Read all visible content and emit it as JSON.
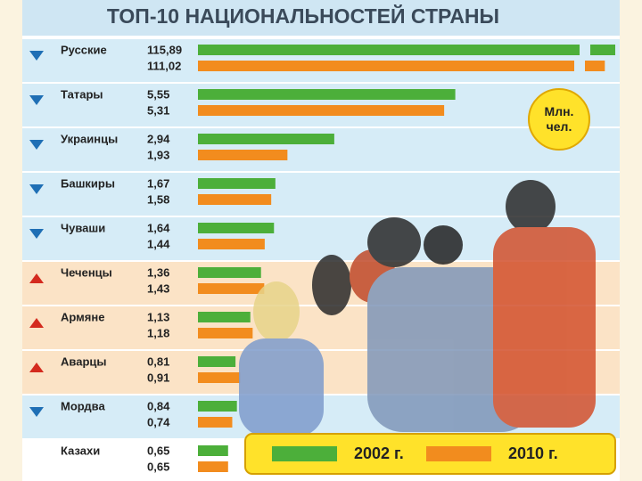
{
  "chart_data": {
    "type": "bar",
    "orientation": "horizontal",
    "title": "ТОП-10 НАЦИОНАЛЬНОСТЕЙ СТРАНЫ",
    "unit": "Млн. чел.",
    "categories": [
      "Русские",
      "Татары",
      "Украинцы",
      "Башкиры",
      "Чуваши",
      "Чеченцы",
      "Армяне",
      "Аварцы",
      "Мордва",
      "Казахи"
    ],
    "series": [
      {
        "name": "2002 г.",
        "color": "#4caf3a",
        "values": [
          115.89,
          5.55,
          2.94,
          1.67,
          1.64,
          1.36,
          1.13,
          0.81,
          0.84,
          0.65
        ],
        "value_labels": [
          "115,89",
          "5,55",
          "2,94",
          "1,67",
          "1,64",
          "1,36",
          "1,13",
          "0,81",
          "0,84",
          "0,65"
        ]
      },
      {
        "name": "2010 г.",
        "color": "#f28c1e",
        "values": [
          111.02,
          5.31,
          1.93,
          1.58,
          1.44,
          1.43,
          1.18,
          0.91,
          0.74,
          0.65
        ],
        "value_labels": [
          "111,02",
          "5,31",
          "1,93",
          "1,58",
          "1,44",
          "1,43",
          "1,18",
          "0,91",
          "0,74",
          "0,65"
        ]
      }
    ]
  }
}
